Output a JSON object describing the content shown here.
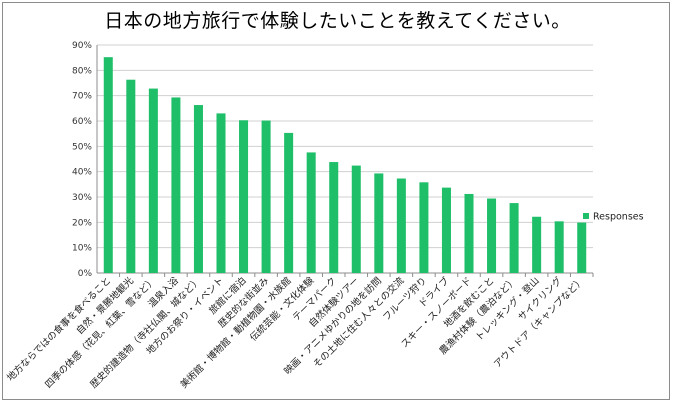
{
  "chart_data": {
    "type": "bar",
    "title": "日本の地方旅行で体験したいことを教えてください。",
    "ylim": [
      0,
      90
    ],
    "y_ticks": [
      "0%",
      "10%",
      "20%",
      "30%",
      "40%",
      "50%",
      "60%",
      "70%",
      "80%",
      "90%"
    ],
    "grid": true,
    "legend_position": "right",
    "bar_color": "#1fbf6a",
    "categories": [
      "地方ならではの食事を食べること",
      "自然・景勝地観光",
      "四季の体感（花見、紅葉、雪など）",
      "温泉入浴",
      "歴史的建造物（寺社仏閣、城など）",
      "地方のお祭り・イベント",
      "旅館に宿泊",
      "歴史的な街並み",
      "美術館・博物館・動植物園・水族館",
      "伝統芸能・文化体験",
      "テーマパーク",
      "自然体験ツアー",
      "映画・アニメゆかりの地を訪問",
      "その土地に住む人々との交流",
      "フルーツ狩り",
      "ドライブ",
      "スキー・スノーボード",
      "地酒を飲むこと",
      "農漁村体験（農泊など）",
      "トレッキング・登山",
      "サイクリング",
      "アウトドア（キャンプなど）"
    ],
    "series": [
      {
        "name": "Responses",
        "values": [
          85.2,
          76.3,
          72.8,
          69.3,
          66.3,
          63.0,
          60.3,
          60.2,
          55.3,
          47.6,
          43.8,
          42.4,
          39.3,
          37.3,
          35.8,
          33.7,
          31.2,
          29.4,
          27.6,
          22.2,
          20.4,
          19.9
        ]
      }
    ]
  }
}
